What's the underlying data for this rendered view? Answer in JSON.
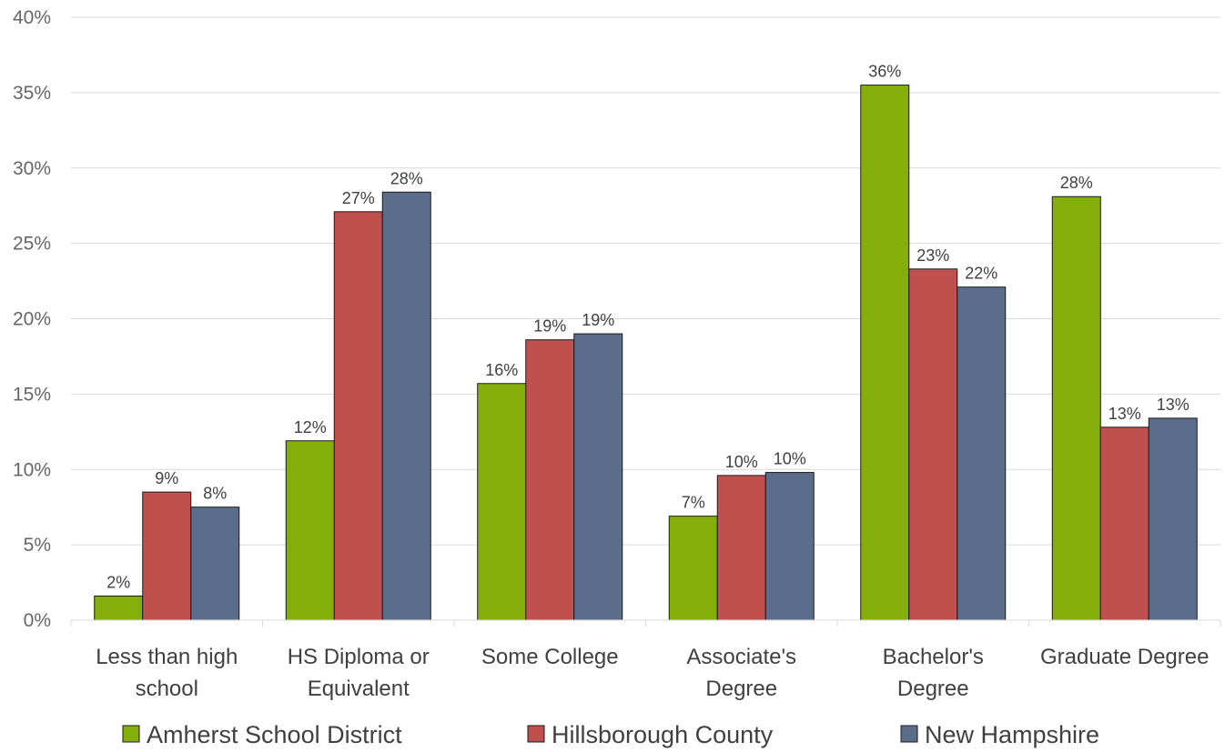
{
  "chart_data": {
    "type": "bar",
    "title": "",
    "xlabel": "",
    "ylabel": "",
    "ylim": [
      0,
      40
    ],
    "yticks": [
      "0%",
      "5%",
      "10%",
      "15%",
      "20%",
      "25%",
      "30%",
      "35%",
      "40%"
    ],
    "grid": true,
    "legend_position": "bottom",
    "categories": [
      [
        "Less than high",
        "school"
      ],
      [
        "HS Diploma or",
        "Equivalent"
      ],
      [
        "Some College"
      ],
      [
        "Associate's",
        "Degree"
      ],
      [
        "Bachelor's",
        "Degree"
      ],
      [
        "Graduate Degree"
      ]
    ],
    "series": [
      {
        "name": "Amherst School District",
        "color": "#84AF0A",
        "values": [
          1.6,
          11.9,
          15.7,
          6.9,
          35.5,
          28.1
        ],
        "labels": [
          "2%",
          "12%",
          "16%",
          "7%",
          "36%",
          "28%"
        ]
      },
      {
        "name": "Hillsborough County",
        "color": "#C0504D",
        "values": [
          8.5,
          27.1,
          18.6,
          9.6,
          23.3,
          12.8
        ],
        "labels": [
          "9%",
          "27%",
          "19%",
          "10%",
          "23%",
          "13%"
        ]
      },
      {
        "name": "New Hampshire",
        "color": "#5A6E8C",
        "values": [
          7.5,
          28.4,
          19.0,
          9.8,
          22.1,
          13.4
        ],
        "labels": [
          "8%",
          "28%",
          "19%",
          "10%",
          "22%",
          "13%"
        ]
      }
    ]
  }
}
